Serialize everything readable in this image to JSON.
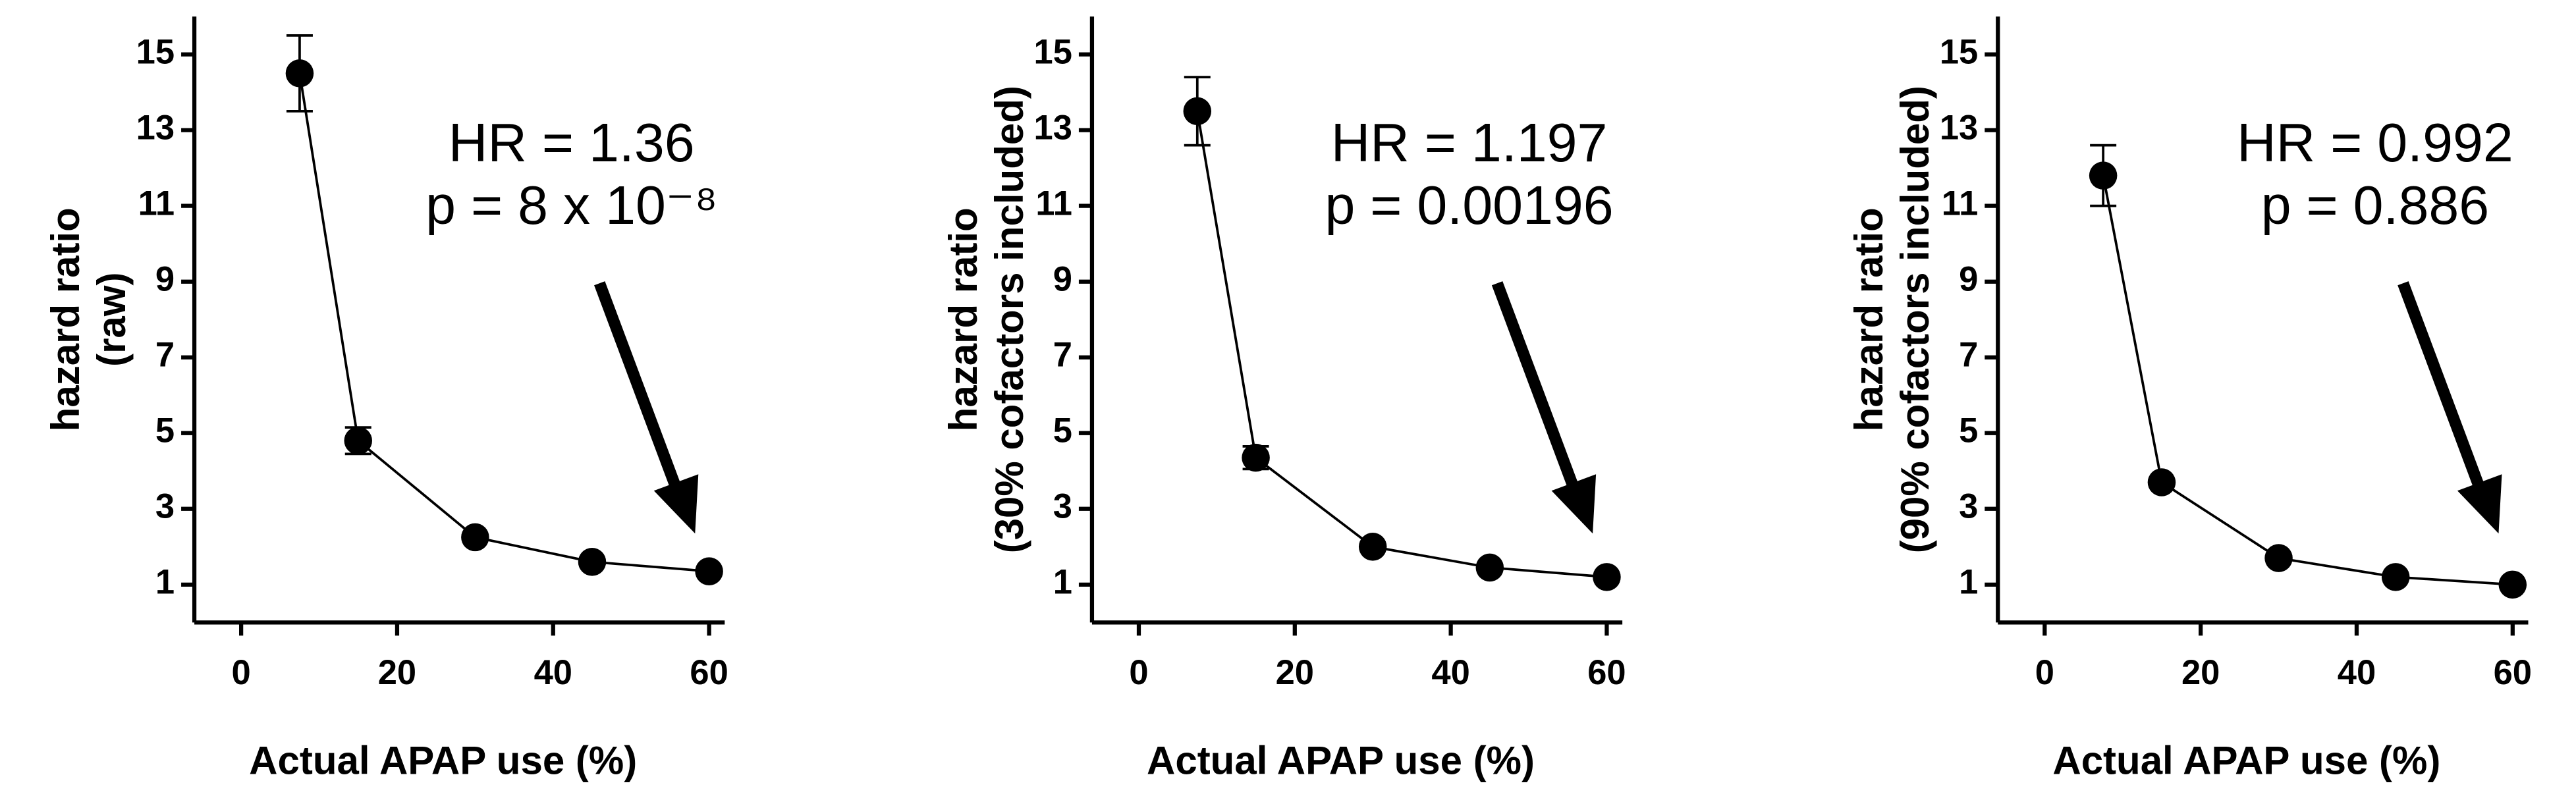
{
  "chart_data": [
    {
      "type": "line",
      "ylabel": [
        "hazard ratio",
        "(raw)"
      ],
      "xlabel": "Actual APAP use (%)",
      "annotation": [
        "HR = 1.36",
        "p = 8 x 10⁻⁸"
      ],
      "x": [
        7.5,
        15,
        30,
        45,
        60
      ],
      "series": [
        {
          "color": "#000000",
          "values": [
            14.5,
            4.8,
            2.25,
            1.6,
            1.35
          ],
          "errors": [
            1.0,
            0.35,
            null,
            null,
            null
          ]
        }
      ],
      "xlim": [
        -6,
        62
      ],
      "ylim": [
        0,
        16
      ],
      "xticks": [
        0,
        20,
        40,
        60
      ],
      "yticks": [
        1,
        3,
        5,
        7,
        9,
        11,
        13,
        15
      ]
    },
    {
      "type": "line",
      "ylabel": [
        "hazard ratio",
        "(30% cofactors included)"
      ],
      "xlabel": "Actual APAP use (%)",
      "annotation": [
        "HR = 1.197",
        "p = 0.00196"
      ],
      "x": [
        7.5,
        15,
        30,
        45,
        60
      ],
      "series": [
        {
          "color": "#000000",
          "values": [
            13.5,
            4.35,
            2.0,
            1.45,
            1.2
          ],
          "errors": [
            0.9,
            0.3,
            null,
            null,
            null
          ]
        }
      ],
      "xlim": [
        -6,
        62
      ],
      "ylim": [
        0,
        16
      ],
      "xticks": [
        0,
        20,
        40,
        60
      ],
      "yticks": [
        1,
        3,
        5,
        7,
        9,
        11,
        13,
        15
      ]
    },
    {
      "type": "line",
      "ylabel": [
        "hazard ratio",
        "(90% cofactors included)"
      ],
      "xlabel": "Actual APAP use (%)",
      "annotation": [
        "HR = 0.992",
        "p = 0.886"
      ],
      "x": [
        7.5,
        15,
        30,
        45,
        60
      ],
      "series": [
        {
          "color": "#000000",
          "values": [
            11.8,
            3.7,
            1.7,
            1.2,
            1.0
          ],
          "errors": [
            0.8,
            null,
            null,
            null,
            null
          ]
        }
      ],
      "xlim": [
        -6,
        62
      ],
      "ylim": [
        0,
        16
      ],
      "xticks": [
        0,
        20,
        40,
        60
      ],
      "yticks": [
        1,
        3,
        5,
        7,
        9,
        11,
        13,
        15
      ]
    }
  ]
}
